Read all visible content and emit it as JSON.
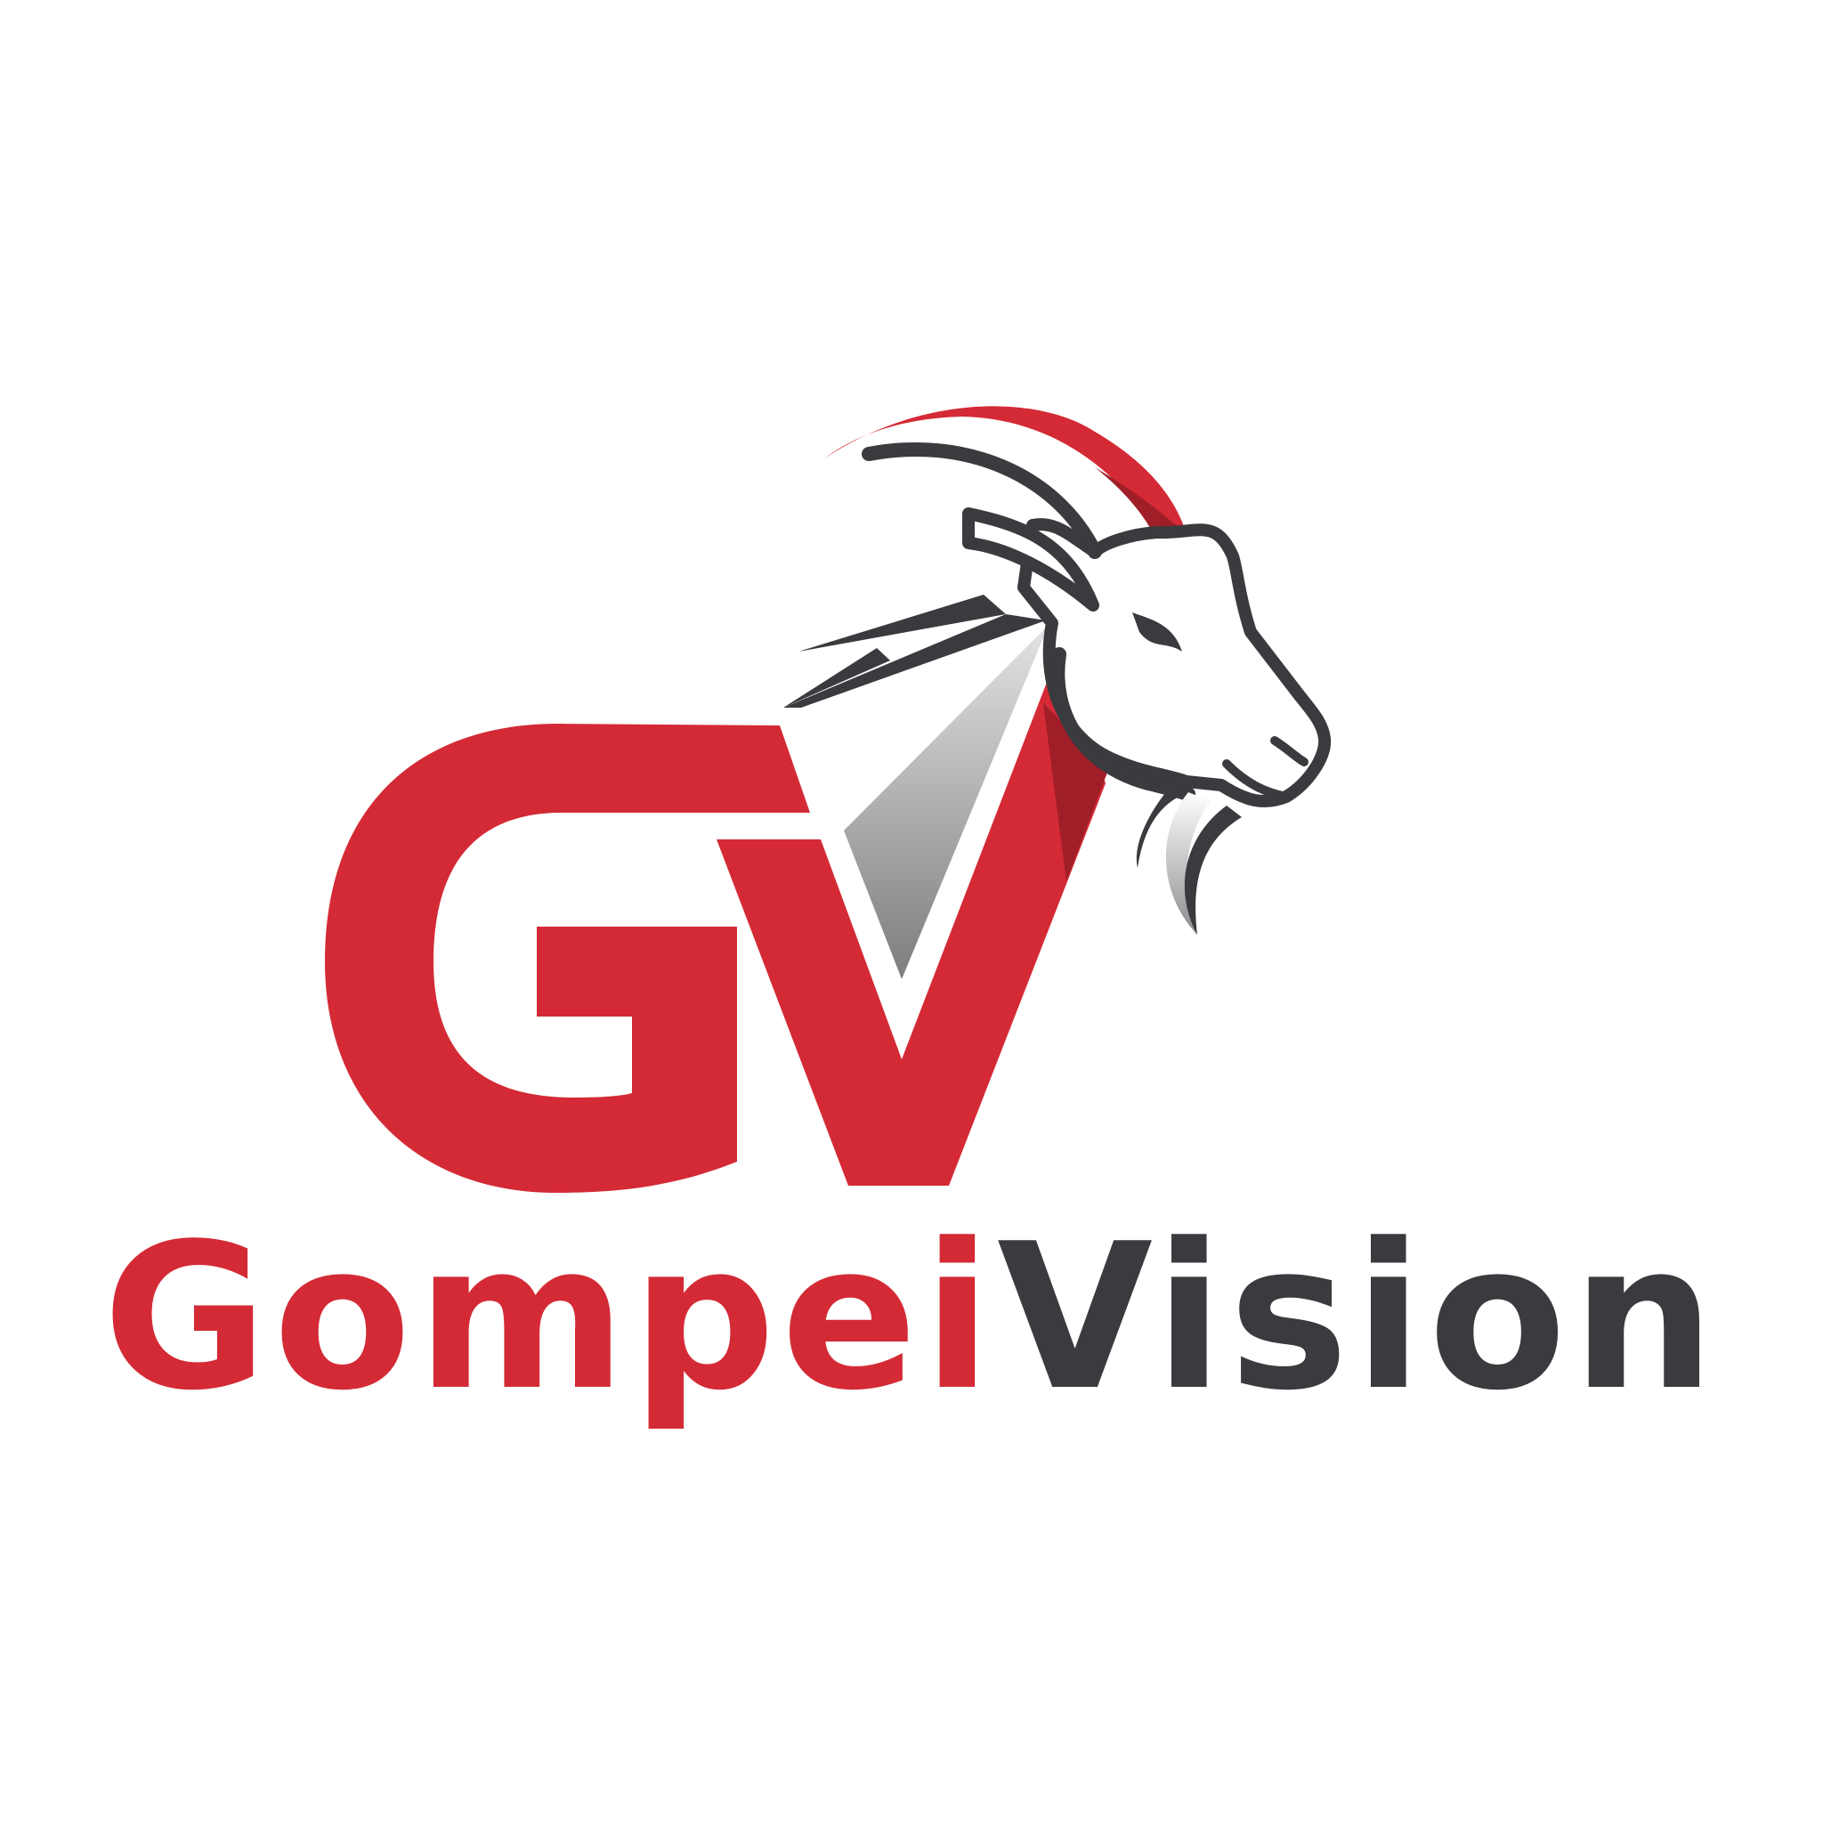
{
  "brand": {
    "monogram": "GV",
    "name_first": "Gompei",
    "name_second": "Vision"
  },
  "colors": {
    "brand_red": "#d42a35",
    "dark_red": "#a01e28",
    "charcoal": "#3a3b3e",
    "gray_light": "#d8d9da",
    "gray_dark": "#7f8082",
    "background": "#ffffff"
  },
  "icons": {
    "emblem": "goat-head-icon"
  }
}
